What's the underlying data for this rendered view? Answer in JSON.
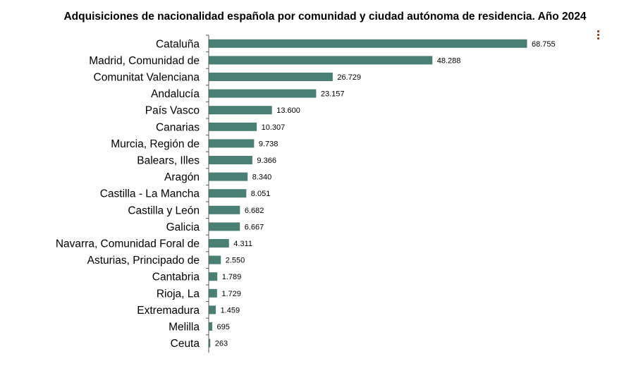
{
  "chart_data": {
    "type": "bar",
    "orientation": "horizontal",
    "title": "Adquisiciones de nacionalidad española por comunidad y ciudad autónoma de residencia. Año 2024",
    "xlabel": "",
    "ylabel": "",
    "xlim": [
      0,
      75000
    ],
    "categories": [
      "Cataluña",
      "Madrid, Comunidad de",
      "Comunitat Valenciana",
      "Andalucía",
      "País Vasco",
      "Canarias",
      "Murcia, Región de",
      "Balears, Illes",
      "Aragón",
      "Castilla - La Mancha",
      "Castilla y León",
      "Galicia",
      "Navarra, Comunidad Foral de",
      "Asturias, Principado de",
      "Cantabria",
      "Rioja, La",
      "Extremadura",
      "Melilla",
      "Ceuta"
    ],
    "values": [
      68755,
      48288,
      26729,
      23157,
      13600,
      10307,
      9738,
      9366,
      8340,
      8051,
      6682,
      6667,
      4311,
      2550,
      1789,
      1729,
      1459,
      695,
      263
    ],
    "value_labels": [
      "68.755",
      "48.288",
      "26.729",
      "23.157",
      "13.600",
      "10.307",
      "9.738",
      "9.366",
      "8.340",
      "8.051",
      "6.682",
      "6.667",
      "4.311",
      "2.550",
      "1.789",
      "1.729",
      "1.459",
      "695",
      "263"
    ],
    "bar_color": "#4a7f74"
  },
  "menu": {
    "icon": "more-vertical-icon",
    "color": "#8b3a1e"
  }
}
